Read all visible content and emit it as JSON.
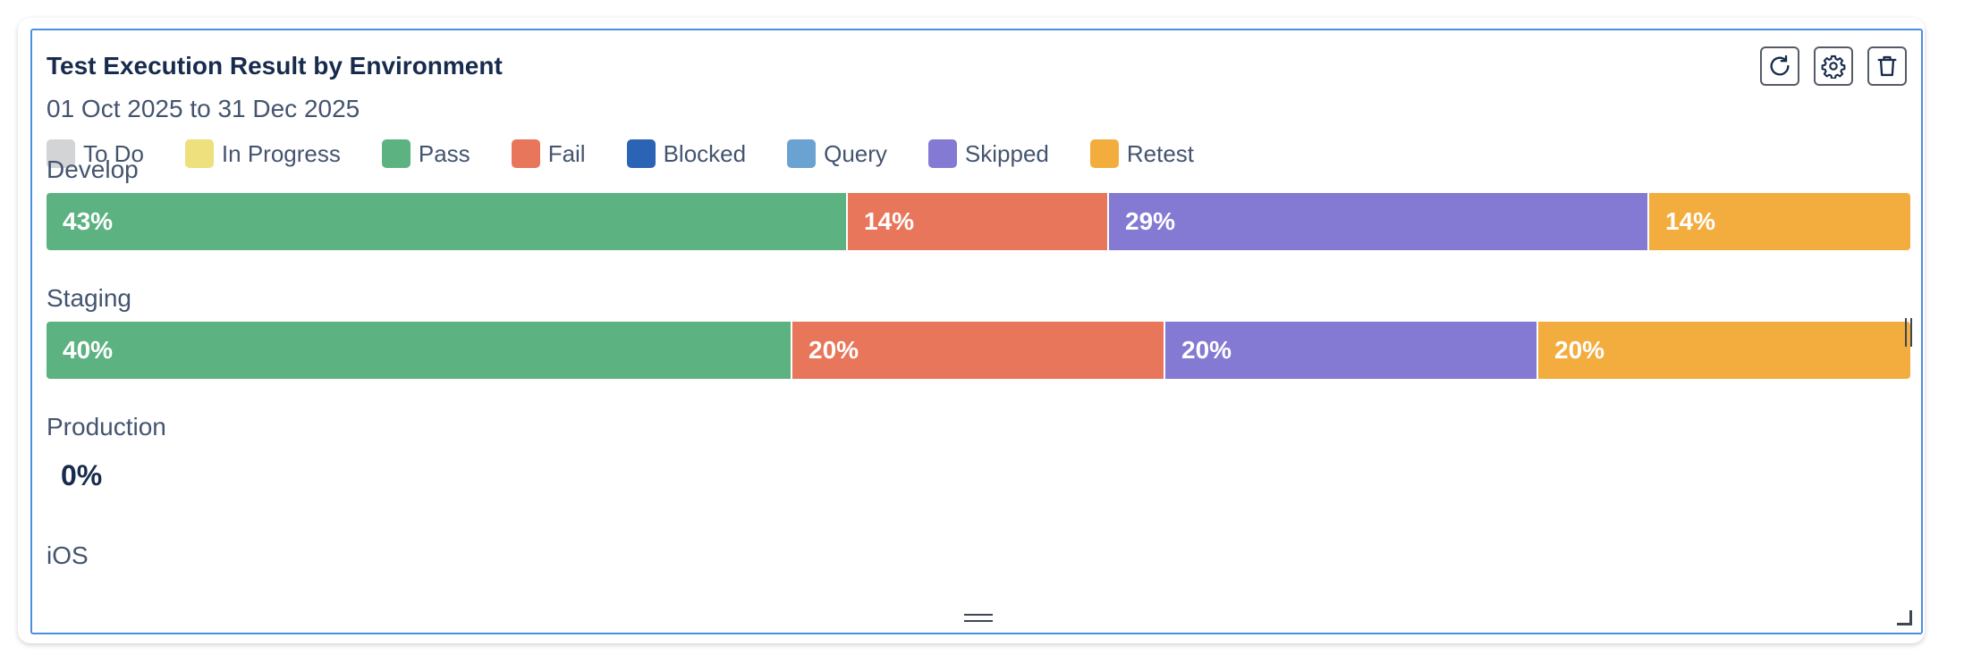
{
  "widget": {
    "title": "Test Execution Result by Environment",
    "date_range": "01 Oct 2025 to 31 Dec 2025",
    "toolbar": [
      {
        "name": "refresh-icon"
      },
      {
        "name": "gear-icon"
      },
      {
        "name": "trash-icon"
      }
    ]
  },
  "chart_data": {
    "type": "bar",
    "orientation": "horizontal-stacked-100",
    "title": "Test Execution Result by Environment",
    "subtitle": "01 Oct 2025 to 31 Dec 2025",
    "legend": [
      {
        "label": "To Do",
        "color": "#d3d4d6"
      },
      {
        "label": "In Progress",
        "color": "#ede07d"
      },
      {
        "label": "Pass",
        "color": "#5db281"
      },
      {
        "label": "Fail",
        "color": "#e8765a"
      },
      {
        "label": "Blocked",
        "color": "#2c64b5"
      },
      {
        "label": "Query",
        "color": "#6aa2d1"
      },
      {
        "label": "Skipped",
        "color": "#8479d3"
      },
      {
        "label": "Retest",
        "color": "#f3ad3e"
      }
    ],
    "categories": [
      "Develop",
      "Staging",
      "Production",
      "iOS"
    ],
    "rows": [
      {
        "label": "Develop",
        "segments": [
          {
            "status": "Pass",
            "value": 43,
            "text": "43%"
          },
          {
            "status": "Fail",
            "value": 14,
            "text": "14%"
          },
          {
            "status": "Skipped",
            "value": 29,
            "text": "29%"
          },
          {
            "status": "Retest",
            "value": 14,
            "text": "14%"
          }
        ]
      },
      {
        "label": "Staging",
        "segments": [
          {
            "status": "Pass",
            "value": 40,
            "text": "40%"
          },
          {
            "status": "Fail",
            "value": 20,
            "text": "20%"
          },
          {
            "status": "Skipped",
            "value": 20,
            "text": "20%"
          },
          {
            "status": "Retest",
            "value": 20,
            "text": "20%"
          }
        ]
      },
      {
        "label": "Production",
        "segments": [],
        "empty_text": "0%"
      },
      {
        "label": "iOS",
        "segments": []
      }
    ]
  }
}
